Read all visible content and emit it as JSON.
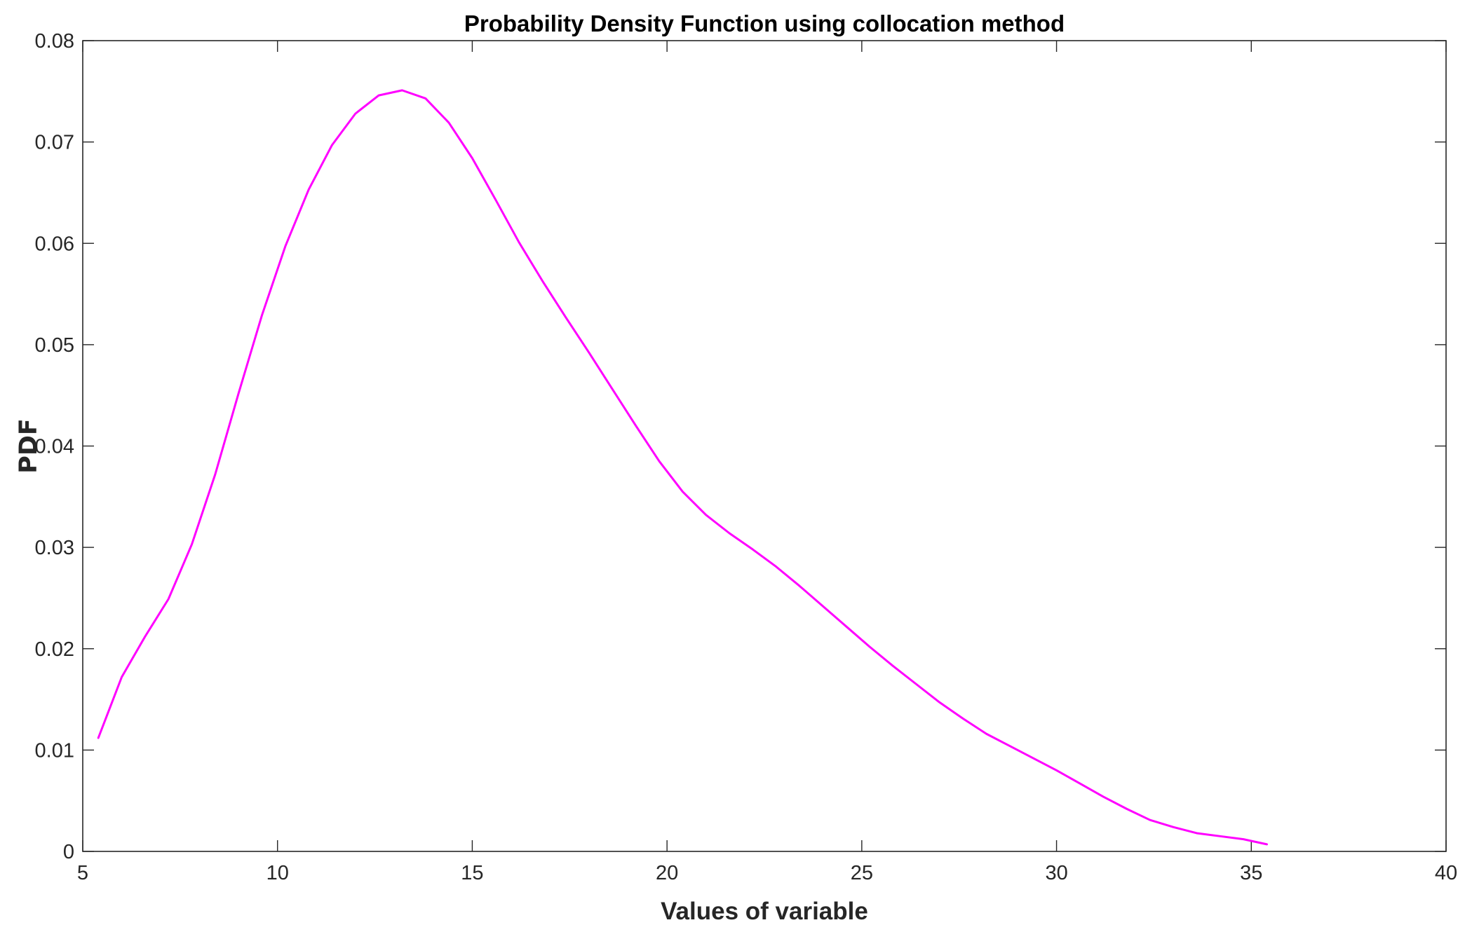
{
  "chart_data": {
    "type": "line",
    "title": "Probability Density Function using collocation method",
    "xlabel": "Values of variable",
    "ylabel": "PDF",
    "xlim": [
      5,
      40
    ],
    "ylim": [
      0,
      0.08
    ],
    "xticks": [
      5,
      10,
      15,
      20,
      25,
      30,
      35,
      40
    ],
    "xtick_labels": [
      "5",
      "10",
      "15",
      "20",
      "25",
      "30",
      "35",
      "40"
    ],
    "yticks": [
      0,
      0.01,
      0.02,
      0.03,
      0.04,
      0.05,
      0.06,
      0.07,
      0.08
    ],
    "ytick_labels": [
      "0",
      "0.01",
      "0.02",
      "0.03",
      "0.04",
      "0.05",
      "0.06",
      "0.07",
      "0.08"
    ],
    "grid": false,
    "line_color": "#ff00ff",
    "axis_color": "#262626",
    "series": [
      {
        "x": [
          5.4,
          6.0,
          6.6,
          7.2,
          7.8,
          8.4,
          9.0,
          9.6,
          10.2,
          10.8,
          11.4,
          12.0,
          12.6,
          13.2,
          13.8,
          14.4,
          15.0,
          15.6,
          16.2,
          16.8,
          17.4,
          18.0,
          18.6,
          19.2,
          19.8,
          20.4,
          21.0,
          21.6,
          22.2,
          22.8,
          23.4,
          24.0,
          24.6,
          25.2,
          25.8,
          26.4,
          27.0,
          27.6,
          28.2,
          28.8,
          29.4,
          30.0,
          30.6,
          31.2,
          31.8,
          32.4,
          33.0,
          33.6,
          34.2,
          34.8,
          35.4
        ],
        "y": [
          0.0112,
          0.0172,
          0.0212,
          0.0249,
          0.0303,
          0.0372,
          0.0452,
          0.0529,
          0.0597,
          0.0653,
          0.0697,
          0.0728,
          0.0746,
          0.0751,
          0.0743,
          0.0719,
          0.0684,
          0.0643,
          0.0601,
          0.0563,
          0.0527,
          0.0492,
          0.0456,
          0.042,
          0.0385,
          0.0355,
          0.0332,
          0.0314,
          0.0298,
          0.0281,
          0.0262,
          0.0242,
          0.0222,
          0.0202,
          0.0183,
          0.0165,
          0.0147,
          0.0131,
          0.0116,
          0.0104,
          0.0092,
          0.008,
          0.0067,
          0.0054,
          0.0042,
          0.0031,
          0.0024,
          0.0018,
          0.0015,
          0.0012,
          0.0007
        ]
      }
    ]
  }
}
